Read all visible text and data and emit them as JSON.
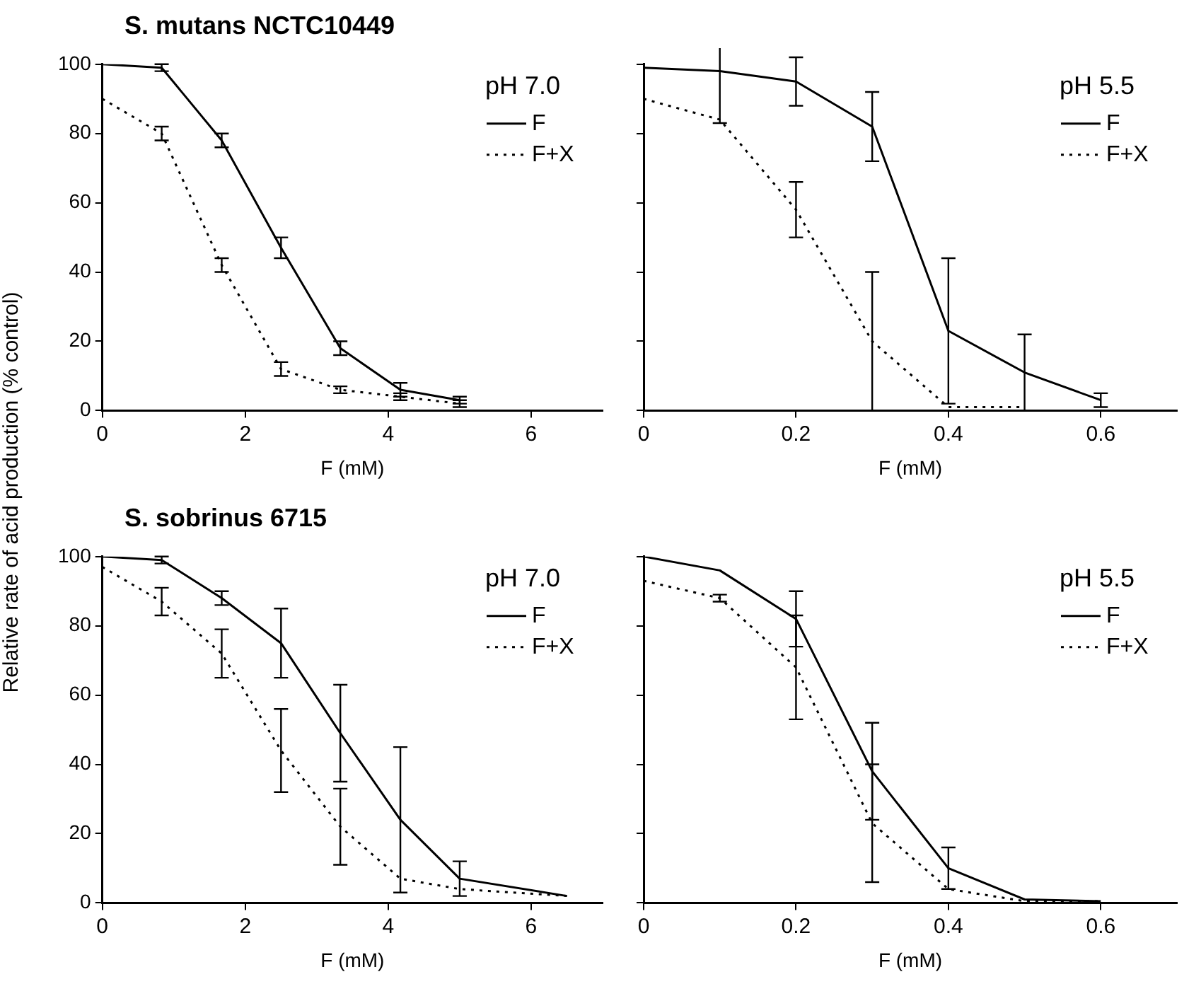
{
  "chart_data": [
    {
      "type": "line",
      "title": "S. mutans NCTC10449",
      "ylabel": "Relative rate of acid production (% control)",
      "xlabel": "F (mM)",
      "annotations": [
        "pH 7.0"
      ],
      "legend": "top right",
      "grid": false,
      "xlim": [
        0,
        7
      ],
      "xticks": [
        0,
        2,
        4,
        6
      ],
      "ylim": [
        0,
        100
      ],
      "yticks": [
        0,
        20,
        40,
        60,
        80,
        100
      ],
      "series": [
        {
          "name": "F",
          "color": "#000000",
          "line_style": "solid",
          "x": [
            0,
            0.83,
            1.67,
            2.5,
            3.33,
            4.17,
            5.0
          ],
          "values": [
            100,
            99,
            78,
            47,
            18,
            6,
            3
          ],
          "errors": [
            null,
            1,
            2,
            3,
            2,
            2,
            1
          ]
        },
        {
          "name": "F+X",
          "color": "#000000",
          "line_style": "dotted",
          "x": [
            0,
            0.83,
            1.67,
            2.5,
            3.33,
            4.17,
            5.0
          ],
          "values": [
            90,
            80,
            42,
            12,
            6,
            4,
            2
          ],
          "errors": [
            null,
            2,
            2,
            2,
            1,
            1,
            1
          ]
        }
      ]
    },
    {
      "type": "line",
      "xlabel": "F (mM)",
      "annotations": [
        "pH 5.5"
      ],
      "legend": "top right",
      "grid": false,
      "tick_labels": "x",
      "xlim": [
        0,
        0.7
      ],
      "xticks": [
        0,
        0.2,
        0.4,
        0.6
      ],
      "ylim": [
        0,
        100
      ],
      "yticks": [
        {
          "value": 0,
          "label": null
        },
        {
          "value": 20,
          "label": null
        },
        {
          "value": 40,
          "label": null
        },
        {
          "value": 60,
          "label": null
        },
        {
          "value": 80,
          "label": null
        },
        {
          "value": 100,
          "label": null
        }
      ],
      "series": [
        {
          "name": "F",
          "color": "#000000",
          "line_style": "solid",
          "x": [
            0,
            0.1,
            0.2,
            0.3,
            0.4,
            0.5,
            0.6
          ],
          "values": [
            99,
            98,
            95,
            82,
            23,
            11,
            3
          ],
          "errors": [
            null,
            15,
            7,
            10,
            21,
            11,
            2
          ]
        },
        {
          "name": "F+X",
          "color": "#000000",
          "line_style": "dotted",
          "x": [
            0,
            0.1,
            0.2,
            0.3,
            0.4,
            0.5
          ],
          "values": [
            90,
            84,
            58,
            20,
            1,
            1
          ],
          "errors": [
            null,
            null,
            8,
            20,
            null,
            null
          ]
        }
      ]
    },
    {
      "type": "line",
      "title": "S. sobrinus 6715",
      "xlabel": "F (mM)",
      "annotations": [
        "pH 7.0"
      ],
      "legend": "top right",
      "grid": false,
      "xlim": [
        0,
        7
      ],
      "xticks": [
        0,
        2,
        4,
        6
      ],
      "ylim": [
        0,
        100
      ],
      "yticks": [
        0,
        20,
        40,
        60,
        80,
        100
      ],
      "series": [
        {
          "name": "F",
          "color": "#000000",
          "line_style": "solid",
          "x": [
            0,
            0.83,
            1.67,
            2.5,
            3.33,
            4.17,
            5.0,
            6.5
          ],
          "values": [
            100,
            99,
            88,
            75,
            49,
            24,
            7,
            2
          ],
          "errors": [
            null,
            1,
            2,
            10,
            14,
            21,
            5,
            null
          ]
        },
        {
          "name": "F+X",
          "color": "#000000",
          "line_style": "dotted",
          "x": [
            0,
            0.83,
            1.67,
            2.5,
            3.33,
            4.17,
            5.0,
            6.5
          ],
          "values": [
            97,
            87,
            72,
            44,
            22,
            7,
            4,
            2
          ],
          "errors": [
            null,
            4,
            7,
            12,
            11,
            null,
            null,
            null
          ]
        }
      ]
    },
    {
      "type": "line",
      "xlabel": "F (mM)",
      "annotations": [
        "pH 5.5"
      ],
      "legend": "top right",
      "grid": false,
      "tick_labels": "x",
      "xlim": [
        0,
        0.7
      ],
      "xticks": [
        0,
        0.2,
        0.4,
        0.6
      ],
      "ylim": [
        0,
        100
      ],
      "yticks": [
        {
          "value": 0,
          "label": null
        },
        {
          "value": 20,
          "label": null
        },
        {
          "value": 40,
          "label": null
        },
        {
          "value": 60,
          "label": null
        },
        {
          "value": 80,
          "label": null
        },
        {
          "value": 100,
          "label": null
        }
      ],
      "series": [
        {
          "name": "F",
          "color": "#000000",
          "line_style": "solid",
          "x": [
            0,
            0.1,
            0.2,
            0.3,
            0.4,
            0.5,
            0.6
          ],
          "values": [
            100,
            96,
            82,
            38,
            10,
            1,
            0.5
          ],
          "errors": [
            null,
            null,
            8,
            14,
            6,
            null,
            null
          ]
        },
        {
          "name": "F+X",
          "color": "#000000",
          "line_style": "dotted",
          "x": [
            0,
            0.1,
            0.2,
            0.3,
            0.4,
            0.5,
            0.6
          ],
          "values": [
            93,
            88,
            68,
            23,
            4,
            0.5,
            0.5
          ],
          "errors": [
            null,
            1,
            15,
            17,
            null,
            null,
            null
          ]
        }
      ]
    }
  ]
}
